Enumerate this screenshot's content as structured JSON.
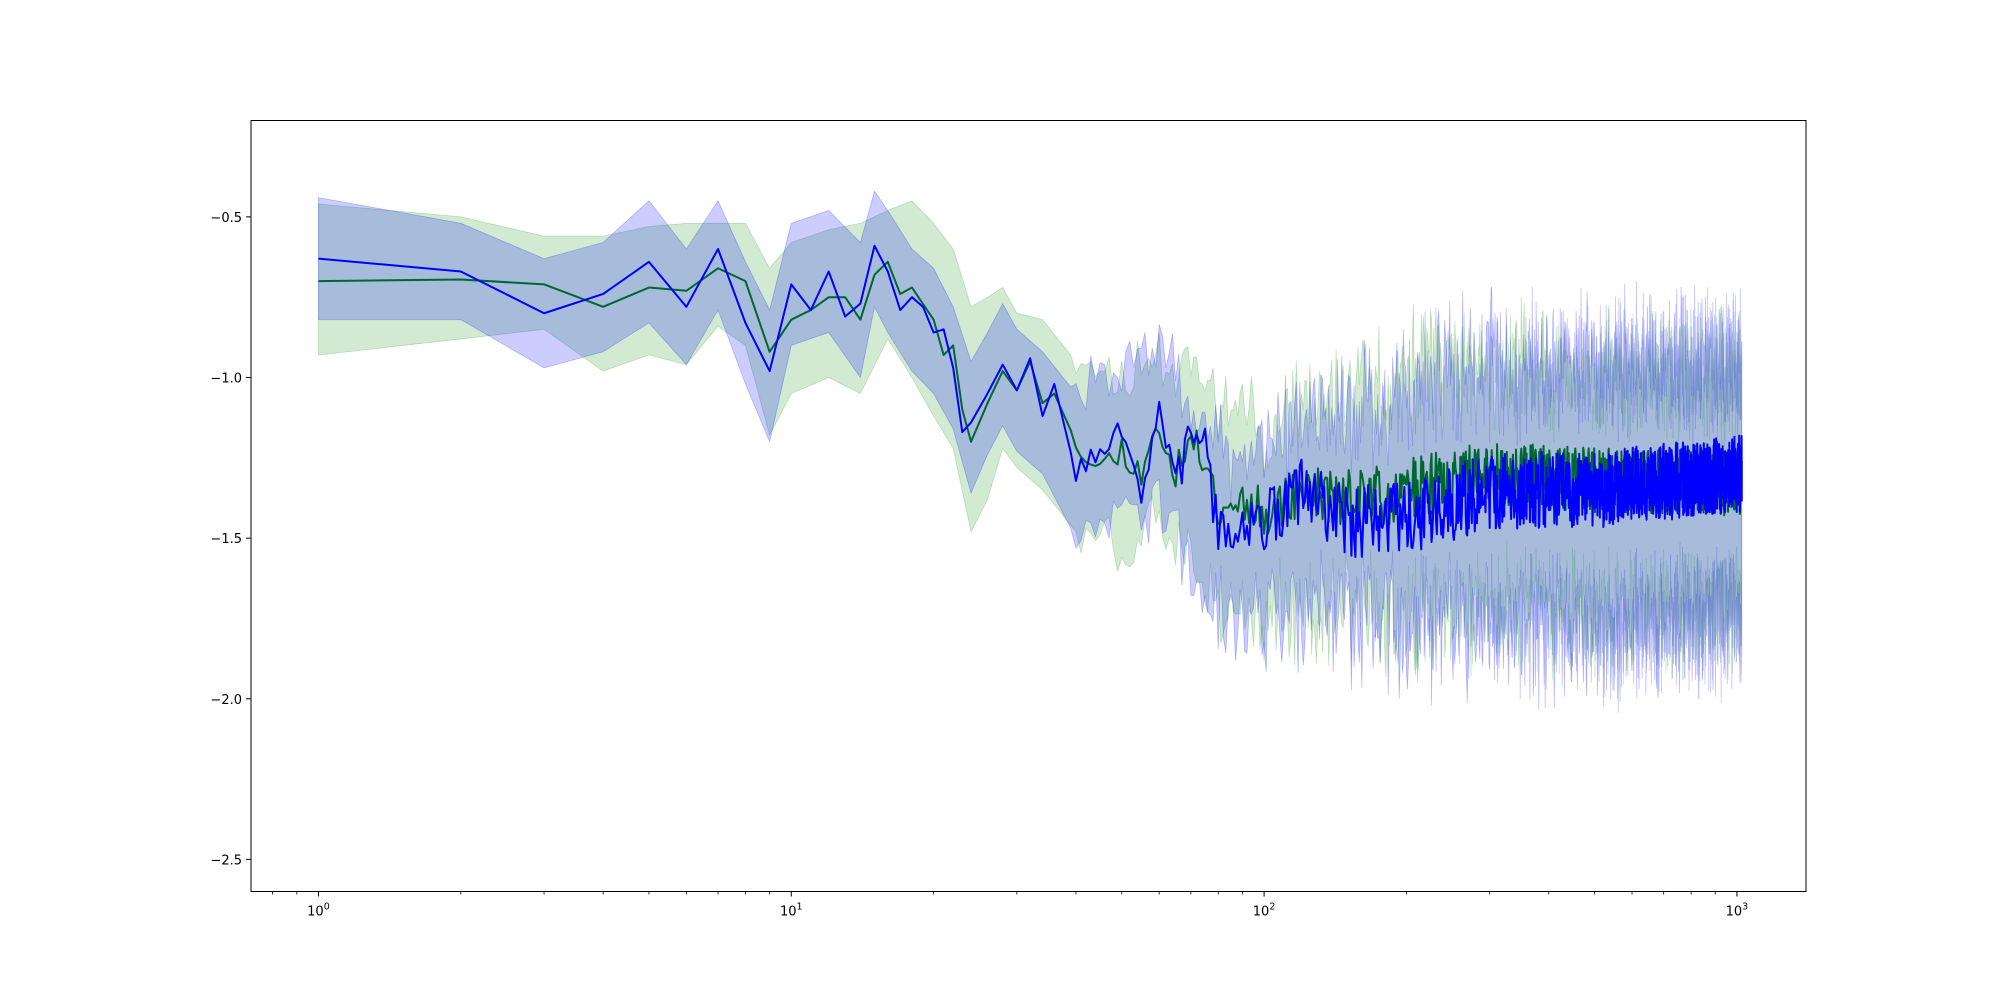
{
  "chart_data": {
    "type": "line",
    "title": "",
    "xlabel": "",
    "ylabel": "",
    "xscale": "log",
    "xlim": [
      0.72,
      1400
    ],
    "ylim": [
      -2.6,
      -0.2
    ],
    "grid": false,
    "legend": "none",
    "x_ticks": [
      {
        "base": "10",
        "exp": "0",
        "value": 1
      },
      {
        "base": "10",
        "exp": "1",
        "value": 10
      },
      {
        "base": "10",
        "exp": "2",
        "value": 100
      },
      {
        "base": "10",
        "exp": "3",
        "value": 1000
      }
    ],
    "y_ticks": [
      {
        "label": "−0.5",
        "value": -0.5
      },
      {
        "label": "−1.0",
        "value": -1.0
      },
      {
        "label": "−1.5",
        "value": -1.5
      },
      {
        "label": "−2.0",
        "value": -2.0
      },
      {
        "label": "−2.5",
        "value": -2.5
      }
    ],
    "x_range": [
      1,
      1024
    ],
    "series": [
      {
        "color": "#008000",
        "band_color": "#2ca02c",
        "band_opacity": 0.22,
        "mean_points": [
          [
            1,
            -0.7
          ],
          [
            2,
            -0.695
          ],
          [
            3,
            -0.71
          ],
          [
            4,
            -0.78
          ],
          [
            5,
            -0.72
          ],
          [
            6,
            -0.73
          ],
          [
            7,
            -0.66
          ],
          [
            8,
            -0.7
          ],
          [
            9,
            -0.92
          ],
          [
            10,
            -0.82
          ],
          [
            11,
            -0.79
          ],
          [
            12,
            -0.75
          ],
          [
            13,
            -0.75
          ],
          [
            14,
            -0.82
          ],
          [
            15,
            -0.68
          ],
          [
            16,
            -0.64
          ],
          [
            17,
            -0.74
          ],
          [
            18,
            -0.72
          ],
          [
            20,
            -0.82
          ],
          [
            21,
            -0.93
          ],
          [
            22,
            -0.9
          ],
          [
            23,
            -1.1
          ],
          [
            24,
            -1.2
          ],
          [
            26,
            -1.08
          ],
          [
            28,
            -0.98
          ],
          [
            30,
            -1.04
          ],
          [
            32,
            -0.95
          ],
          [
            34,
            -1.08
          ],
          [
            36,
            -1.05
          ],
          [
            40,
            -1.2
          ],
          [
            45,
            -1.28
          ],
          [
            50,
            -1.22
          ],
          [
            55,
            -1.3
          ],
          [
            60,
            -1.15
          ],
          [
            65,
            -1.3
          ],
          [
            70,
            -1.2
          ],
          [
            75,
            -1.25
          ],
          [
            80,
            -1.4
          ],
          [
            90,
            -1.38
          ],
          [
            100,
            -1.42
          ],
          [
            120,
            -1.35
          ],
          [
            150,
            -1.38
          ],
          [
            200,
            -1.35
          ],
          [
            300,
            -1.3
          ],
          [
            500,
            -1.32
          ],
          [
            1000,
            -1.33
          ]
        ],
        "band_upper": [
          [
            1,
            -0.46
          ],
          [
            2,
            -0.5
          ],
          [
            3,
            -0.56
          ],
          [
            4,
            -0.56
          ],
          [
            5,
            -0.53
          ],
          [
            6,
            -0.52
          ],
          [
            7,
            -0.52
          ],
          [
            8,
            -0.52
          ],
          [
            9,
            -0.66
          ],
          [
            10,
            -0.58
          ],
          [
            12,
            -0.54
          ],
          [
            14,
            -0.52
          ],
          [
            16,
            -0.48
          ],
          [
            18,
            -0.45
          ],
          [
            20,
            -0.52
          ],
          [
            22,
            -0.6
          ],
          [
            24,
            -0.78
          ],
          [
            26,
            -0.75
          ],
          [
            28,
            -0.72
          ],
          [
            30,
            -0.8
          ],
          [
            34,
            -0.82
          ],
          [
            40,
            -0.95
          ],
          [
            50,
            -1.0
          ],
          [
            60,
            -0.92
          ],
          [
            80,
            -1.05
          ],
          [
            100,
            -1.15
          ],
          [
            150,
            -1.05
          ],
          [
            200,
            -1.0
          ],
          [
            300,
            -0.95
          ],
          [
            500,
            -1.0
          ],
          [
            1000,
            -1.0
          ]
        ],
        "band_lower": [
          [
            1,
            -0.93
          ],
          [
            2,
            -0.88
          ],
          [
            3,
            -0.85
          ],
          [
            4,
            -0.98
          ],
          [
            5,
            -0.93
          ],
          [
            6,
            -0.96
          ],
          [
            7,
            -0.84
          ],
          [
            8,
            -0.9
          ],
          [
            9,
            -1.18
          ],
          [
            10,
            -1.05
          ],
          [
            12,
            -1.0
          ],
          [
            14,
            -1.05
          ],
          [
            16,
            -0.88
          ],
          [
            18,
            -1.0
          ],
          [
            20,
            -1.12
          ],
          [
            22,
            -1.22
          ],
          [
            24,
            -1.48
          ],
          [
            26,
            -1.38
          ],
          [
            28,
            -1.22
          ],
          [
            30,
            -1.28
          ],
          [
            34,
            -1.35
          ],
          [
            40,
            -1.48
          ],
          [
            50,
            -1.52
          ],
          [
            60,
            -1.45
          ],
          [
            80,
            -1.7
          ],
          [
            100,
            -1.72
          ],
          [
            150,
            -1.7
          ],
          [
            200,
            -1.75
          ],
          [
            300,
            -1.7
          ],
          [
            500,
            -1.75
          ],
          [
            1000,
            -1.72
          ]
        ],
        "noise": {
          "start_x": 40,
          "line_amp": 0.1,
          "band_amp": 0.25,
          "seed": 11
        }
      },
      {
        "color": "#0000ff",
        "band_color": "#0000ff",
        "band_opacity": 0.2,
        "mean_points": [
          [
            1,
            -0.63
          ],
          [
            2,
            -0.67
          ],
          [
            3,
            -0.8
          ],
          [
            4,
            -0.74
          ],
          [
            5,
            -0.64
          ],
          [
            6,
            -0.78
          ],
          [
            7,
            -0.6
          ],
          [
            8,
            -0.83
          ],
          [
            9,
            -0.98
          ],
          [
            10,
            -0.71
          ],
          [
            11,
            -0.79
          ],
          [
            12,
            -0.67
          ],
          [
            13,
            -0.81
          ],
          [
            14,
            -0.77
          ],
          [
            15,
            -0.59
          ],
          [
            16,
            -0.67
          ],
          [
            17,
            -0.79
          ],
          [
            18,
            -0.75
          ],
          [
            19,
            -0.78
          ],
          [
            20,
            -0.86
          ],
          [
            21,
            -0.85
          ],
          [
            22,
            -0.97
          ],
          [
            23,
            -1.17
          ],
          [
            24,
            -1.14
          ],
          [
            26,
            -1.05
          ],
          [
            28,
            -0.96
          ],
          [
            30,
            -1.04
          ],
          [
            32,
            -0.94
          ],
          [
            34,
            -1.12
          ],
          [
            36,
            -1.02
          ],
          [
            40,
            -1.3
          ],
          [
            45,
            -1.25
          ],
          [
            50,
            -1.18
          ],
          [
            55,
            -1.35
          ],
          [
            60,
            -1.1
          ],
          [
            65,
            -1.35
          ],
          [
            70,
            -1.15
          ],
          [
            75,
            -1.2
          ],
          [
            80,
            -1.5
          ],
          [
            90,
            -1.45
          ],
          [
            100,
            -1.45
          ],
          [
            120,
            -1.35
          ],
          [
            150,
            -1.45
          ],
          [
            200,
            -1.45
          ],
          [
            300,
            -1.35
          ],
          [
            500,
            -1.35
          ],
          [
            1000,
            -1.3
          ]
        ],
        "band_upper": [
          [
            1,
            -0.44
          ],
          [
            2,
            -0.52
          ],
          [
            3,
            -0.63
          ],
          [
            4,
            -0.58
          ],
          [
            5,
            -0.45
          ],
          [
            6,
            -0.6
          ],
          [
            7,
            -0.45
          ],
          [
            8,
            -0.64
          ],
          [
            9,
            -0.79
          ],
          [
            10,
            -0.52
          ],
          [
            12,
            -0.48
          ],
          [
            14,
            -0.58
          ],
          [
            15,
            -0.42
          ],
          [
            16,
            -0.48
          ],
          [
            18,
            -0.6
          ],
          [
            20,
            -0.66
          ],
          [
            22,
            -0.78
          ],
          [
            24,
            -0.95
          ],
          [
            26,
            -0.86
          ],
          [
            28,
            -0.77
          ],
          [
            30,
            -0.85
          ],
          [
            34,
            -0.92
          ],
          [
            40,
            -1.05
          ],
          [
            50,
            -0.98
          ],
          [
            60,
            -0.9
          ],
          [
            80,
            -1.25
          ],
          [
            100,
            -1.2
          ],
          [
            150,
            -1.1
          ],
          [
            200,
            -1.05
          ],
          [
            300,
            -0.95
          ],
          [
            500,
            -0.95
          ],
          [
            1000,
            -0.95
          ]
        ],
        "band_lower": [
          [
            1,
            -0.82
          ],
          [
            2,
            -0.82
          ],
          [
            3,
            -0.97
          ],
          [
            4,
            -0.92
          ],
          [
            5,
            -0.83
          ],
          [
            6,
            -0.96
          ],
          [
            7,
            -0.79
          ],
          [
            8,
            -1.02
          ],
          [
            9,
            -1.2
          ],
          [
            10,
            -0.9
          ],
          [
            12,
            -0.86
          ],
          [
            14,
            -1.0
          ],
          [
            15,
            -0.78
          ],
          [
            16,
            -0.86
          ],
          [
            18,
            -0.98
          ],
          [
            20,
            -1.05
          ],
          [
            22,
            -1.16
          ],
          [
            24,
            -1.36
          ],
          [
            26,
            -1.24
          ],
          [
            28,
            -1.15
          ],
          [
            30,
            -1.23
          ],
          [
            34,
            -1.3
          ],
          [
            40,
            -1.5
          ],
          [
            50,
            -1.45
          ],
          [
            60,
            -1.4
          ],
          [
            80,
            -1.75
          ],
          [
            100,
            -1.75
          ],
          [
            150,
            -1.75
          ],
          [
            200,
            -1.8
          ],
          [
            300,
            -1.75
          ],
          [
            500,
            -1.8
          ],
          [
            1000,
            -1.75
          ]
        ],
        "noise": {
          "start_x": 40,
          "line_amp": 0.12,
          "band_amp": 0.28,
          "seed": 7
        }
      }
    ]
  }
}
